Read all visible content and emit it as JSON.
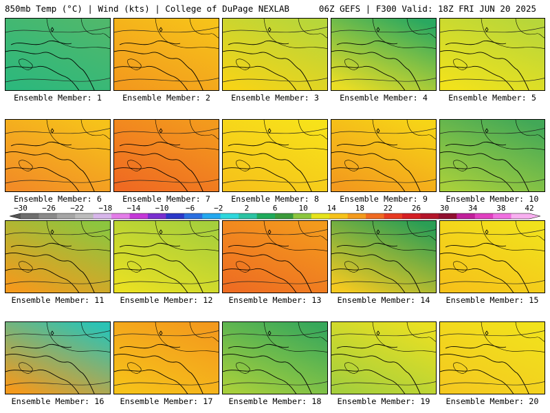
{
  "header": {
    "left_text": "850mb Temp (°C) | Wind (kts) | College of DuPage NEXLAB",
    "right_text": "06Z GEFS | F300 Valid: 18Z FRI JUN 20 2025"
  },
  "label_prefix": "Ensemble Member: ",
  "members": [
    {
      "number": "1",
      "fill": [
        "#4fb86c",
        "#2db87c"
      ]
    },
    {
      "number": "2",
      "fill": [
        "#f6c21a",
        "#f39a1d"
      ]
    },
    {
      "number": "3",
      "fill": [
        "#b7d63a",
        "#f6d417"
      ]
    },
    {
      "number": "4",
      "fill": [
        "#2aa860",
        "#e9dd25"
      ]
    },
    {
      "number": "5",
      "fill": [
        "#b7d63a",
        "#f1e21c"
      ]
    },
    {
      "number": "6",
      "fill": [
        "#f6c21a",
        "#f28c26"
      ]
    },
    {
      "number": "7",
      "fill": [
        "#f39a1d",
        "#ef6a22"
      ]
    },
    {
      "number": "8",
      "fill": [
        "#f7e21a",
        "#f6c21a"
      ]
    },
    {
      "number": "9",
      "fill": [
        "#f6d417",
        "#f39a1d"
      ]
    },
    {
      "number": "10",
      "fill": [
        "#42a857",
        "#a6cf3c"
      ]
    },
    {
      "number": "11",
      "fill": [
        "#8cc63f",
        "#f39a1d"
      ]
    },
    {
      "number": "12",
      "fill": [
        "#a6cf3c",
        "#e9e023"
      ]
    },
    {
      "number": "13",
      "fill": [
        "#f39a1d",
        "#ee6d22"
      ]
    },
    {
      "number": "14",
      "fill": [
        "#2b9e55",
        "#f4c920"
      ]
    },
    {
      "number": "15",
      "fill": [
        "#f1e21c",
        "#f6c21a"
      ]
    },
    {
      "number": "16",
      "fill": [
        "#2cc3b5",
        "#f39a1d"
      ]
    },
    {
      "number": "17",
      "fill": [
        "#f39a1d",
        "#f6c21a"
      ]
    },
    {
      "number": "18",
      "fill": [
        "#38a85b",
        "#a6cf3c"
      ]
    },
    {
      "number": "19",
      "fill": [
        "#e9e023",
        "#a6cf3c"
      ]
    },
    {
      "number": "20",
      "fill": [
        "#f1e21c",
        "#f4c920"
      ]
    }
  ],
  "colorbar": {
    "ticks": [
      "−30",
      "−26",
      "−22",
      "−18",
      "−14",
      "−10",
      "−6",
      "−2",
      "2",
      "6",
      "10",
      "14",
      "18",
      "22",
      "26",
      "30",
      "34",
      "38",
      "42"
    ],
    "colors": [
      "#6e6e6e",
      "#8a8a8a",
      "#a5a5a5",
      "#bcbcbc",
      "#d7b6ea",
      "#e37de8",
      "#c438d8",
      "#7a2fcf",
      "#2b38c8",
      "#2b6fe0",
      "#24a8ef",
      "#2ed7dc",
      "#2cc3a3",
      "#1faa5b",
      "#3b9a3b",
      "#8cc63f",
      "#e6e31c",
      "#f6c21a",
      "#f39a1d",
      "#ef6a22",
      "#e63a22",
      "#d41f24",
      "#b3152a",
      "#8f1030",
      "#c0209a",
      "#e040c0",
      "#f070e0",
      "#f8b0f0"
    ]
  }
}
